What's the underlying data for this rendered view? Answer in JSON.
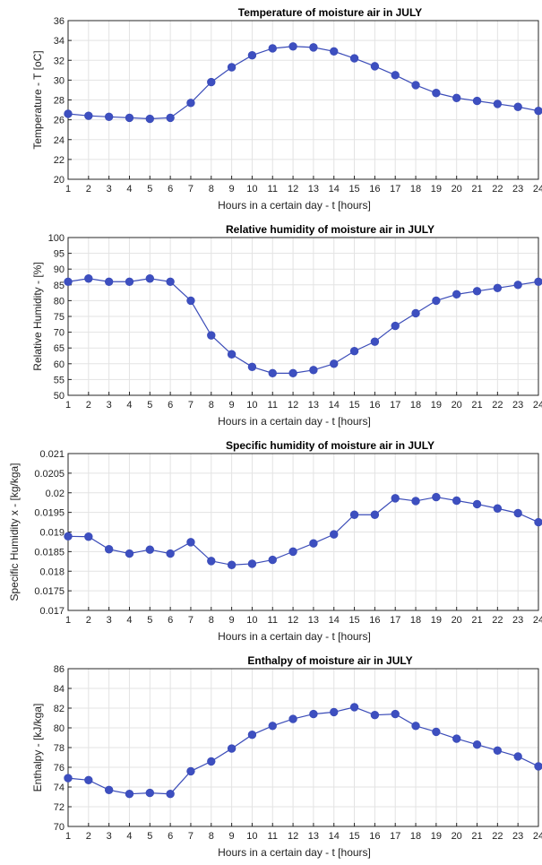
{
  "chart_data": [
    {
      "type": "line",
      "title": "Temperature of moisture air in JULY",
      "xlabel": "Hours in a certain day - t [hours]",
      "ylabel": "Temperature - T [oC]",
      "x": [
        1,
        2,
        3,
        4,
        5,
        6,
        7,
        8,
        9,
        10,
        11,
        12,
        13,
        14,
        15,
        16,
        17,
        18,
        19,
        20,
        21,
        22,
        23,
        24
      ],
      "xlim": [
        1,
        24
      ],
      "ylim": [
        20,
        36
      ],
      "yticks": [
        "20",
        "22",
        "24",
        "26",
        "28",
        "30",
        "32",
        "34",
        "36"
      ],
      "grid": true,
      "series": [
        {
          "values": [
            26.6,
            26.4,
            26.3,
            26.2,
            26.1,
            26.2,
            27.7,
            29.8,
            31.3,
            32.5,
            33.2,
            33.4,
            33.3,
            32.9,
            32.2,
            31.4,
            30.5,
            29.5,
            28.7,
            28.2,
            27.9,
            27.6,
            27.3,
            26.9
          ]
        }
      ]
    },
    {
      "type": "line",
      "title": "Relative humidity of moisture air in JULY",
      "xlabel": "Hours in a certain day - t [hours]",
      "ylabel": "Relative Humidity - [%]",
      "x": [
        1,
        2,
        3,
        4,
        5,
        6,
        7,
        8,
        9,
        10,
        11,
        12,
        13,
        14,
        15,
        16,
        17,
        18,
        19,
        20,
        21,
        22,
        23,
        24
      ],
      "xlim": [
        1,
        24
      ],
      "ylim": [
        50,
        100
      ],
      "yticks": [
        "50",
        "55",
        "60",
        "65",
        "70",
        "75",
        "80",
        "85",
        "90",
        "95",
        "100"
      ],
      "grid": true,
      "series": [
        {
          "values": [
            86,
            87,
            86,
            86,
            87,
            86,
            80,
            69,
            63,
            59,
            57,
            57,
            58,
            60,
            64,
            67,
            72,
            76,
            80,
            82,
            83,
            84,
            85,
            86
          ]
        }
      ]
    },
    {
      "type": "line",
      "title": "Specific humidity of moisture air in JULY",
      "xlabel": "Hours in a certain day - t [hours]",
      "ylabel": "Specific Humidity x - [kg/kga]",
      "x": [
        1,
        2,
        3,
        4,
        5,
        6,
        7,
        8,
        9,
        10,
        11,
        12,
        13,
        14,
        15,
        16,
        17,
        18,
        19,
        20,
        21,
        22,
        23,
        24
      ],
      "xlim": [
        1,
        24
      ],
      "ylim": [
        0.017,
        0.021
      ],
      "yticks": [
        "0.017",
        "0.0175",
        "0.018",
        "0.0185",
        "0.019",
        "0.0195",
        "0.02",
        "0.0205",
        "0.021"
      ],
      "grid": true,
      "series": [
        {
          "values": [
            0.01889,
            0.01888,
            0.01856,
            0.01845,
            0.01855,
            0.01845,
            0.01874,
            0.01826,
            0.01816,
            0.01819,
            0.01829,
            0.0185,
            0.01871,
            0.01894,
            0.01944,
            0.01944,
            0.01986,
            0.01979,
            0.01989,
            0.0198,
            0.01971,
            0.0196,
            0.01948,
            0.01925
          ]
        }
      ]
    },
    {
      "type": "line",
      "title": "Enthalpy of moisture air in JULY",
      "xlabel": "Hours in a certain day - t [hours]",
      "ylabel": "Enthalpy - [kJ/kga]",
      "x": [
        1,
        2,
        3,
        4,
        5,
        6,
        7,
        8,
        9,
        10,
        11,
        12,
        13,
        14,
        15,
        16,
        17,
        18,
        19,
        20,
        21,
        22,
        23,
        24
      ],
      "xlim": [
        1,
        24
      ],
      "ylim": [
        70,
        86
      ],
      "yticks": [
        "70",
        "72",
        "74",
        "76",
        "78",
        "80",
        "82",
        "84",
        "86"
      ],
      "grid": true,
      "series": [
        {
          "values": [
            74.9,
            74.7,
            73.7,
            73.3,
            73.4,
            73.3,
            75.6,
            76.6,
            77.9,
            79.3,
            80.2,
            80.9,
            81.4,
            81.6,
            82.1,
            81.3,
            81.4,
            80.2,
            79.6,
            78.9,
            78.3,
            77.7,
            77.1,
            76.1
          ]
        }
      ]
    }
  ],
  "colors": {
    "series": "#3b4cb8",
    "marker": "#3d4fc0",
    "frame": "#262626",
    "grid": "#e3e3e3"
  }
}
